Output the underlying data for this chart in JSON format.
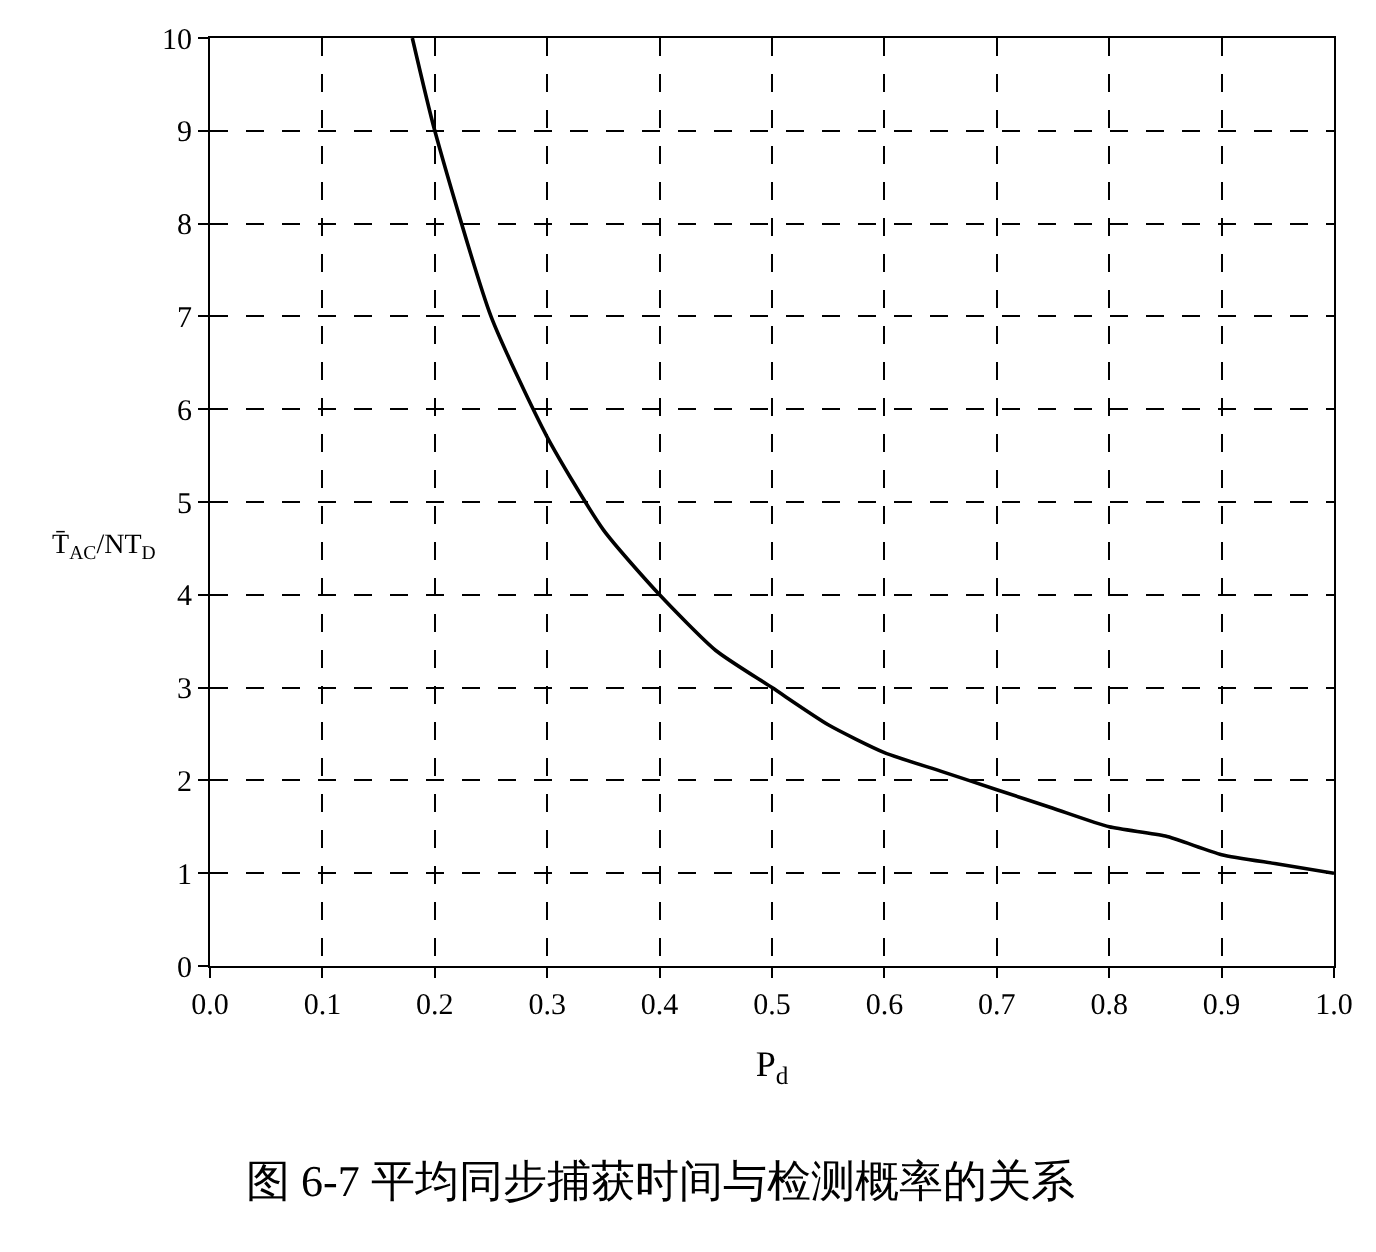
{
  "chart_data": {
    "type": "line",
    "xlabel": "P$_{d}$",
    "ylabel": "T̄$_{AC}$/NT$_{D}$",
    "title": "图 6-7 平均同步捕获时间与检测概率的关系",
    "x": [
      0.18,
      0.2,
      0.25,
      0.3,
      0.35,
      0.4,
      0.45,
      0.5,
      0.55,
      0.6,
      0.65,
      0.7,
      0.75,
      0.8,
      0.85,
      0.9,
      0.95,
      1.0
    ],
    "series": [
      {
        "color": "#000000",
        "values": [
          10.0,
          9.0,
          7.0,
          5.7,
          4.7,
          4.0,
          3.4,
          3.0,
          2.6,
          2.3,
          2.1,
          1.9,
          1.7,
          1.5,
          1.4,
          1.2,
          1.1,
          1.0
        ]
      }
    ],
    "xlim": [
      0.0,
      1.0
    ],
    "xticks": [
      {
        "value": 0,
        "label": "0.0"
      },
      0.1,
      0.2,
      0.3,
      0.4,
      0.5,
      0.6,
      0.7,
      0.8,
      0.9,
      {
        "value": 1,
        "label": "1.0"
      }
    ],
    "ylim": [
      0,
      10
    ],
    "yticks": [
      0,
      1,
      2,
      3,
      4,
      5,
      6,
      7,
      8,
      9,
      10
    ],
    "grid": true,
    "marker": "none",
    "line_style": "solid"
  }
}
